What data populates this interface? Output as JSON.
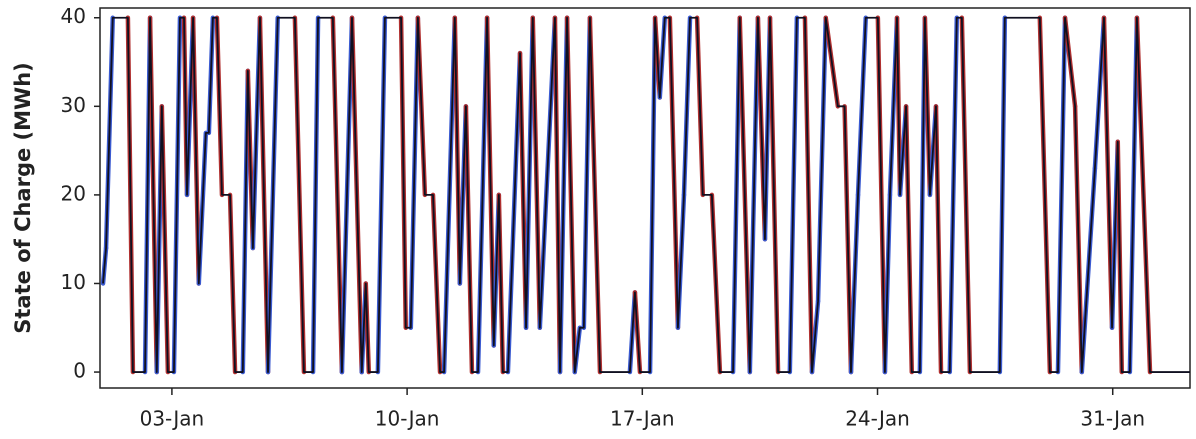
{
  "chart_data": {
    "type": "line",
    "ylabel": "State of Charge (MWh)",
    "x": [
      0.95,
      1.04,
      1.24,
      1.69,
      1.84,
      2.2,
      2.35,
      2.55,
      2.7,
      2.88,
      3.06,
      3.24,
      3.36,
      3.45,
      3.63,
      3.8,
      4.01,
      4.1,
      4.22,
      4.34,
      4.49,
      4.73,
      4.88,
      5.11,
      5.26,
      5.41,
      5.62,
      5.86,
      6.15,
      6.66,
      6.93,
      7.2,
      7.35,
      7.79,
      8.06,
      8.36,
      8.65,
      8.77,
      8.86,
      9.13,
      9.34,
      9.82,
      9.96,
      10.11,
      10.32,
      10.53,
      10.77,
      10.98,
      11.1,
      11.42,
      11.57,
      11.75,
      11.93,
      12.11,
      12.38,
      12.58,
      12.73,
      12.85,
      13.0,
      13.36,
      13.54,
      13.74,
      13.95,
      14.4,
      14.55,
      14.76,
      14.99,
      15.14,
      15.26,
      15.44,
      15.74,
      15.98,
      16.63,
      16.78,
      16.93,
      17.23,
      17.38,
      17.52,
      17.67,
      17.82,
      18.06,
      18.24,
      18.42,
      18.63,
      18.8,
      19.07,
      19.31,
      19.7,
      19.9,
      20.2,
      20.44,
      20.65,
      20.8,
      21.04,
      21.39,
      21.6,
      21.84,
      22.05,
      22.23,
      22.46,
      22.82,
      23.02,
      23.21,
      23.42,
      23.65,
      24.01,
      24.22,
      24.37,
      24.58,
      24.67,
      24.85,
      25.02,
      25.26,
      25.41,
      25.56,
      25.74,
      25.89,
      26.15,
      26.36,
      26.51,
      26.75,
      27.64,
      27.79,
      28.83,
      29.13,
      29.37,
      29.58,
      29.88,
      30.08,
      30.47,
      30.74,
      30.98,
      31.15,
      31.27,
      31.51,
      31.72,
      32.11,
      33.3
    ],
    "series": [
      {
        "color": "#101020",
        "rise_color": "#3a5ad0",
        "fall_color": "#b03030",
        "values": [
          10,
          14,
          40,
          40,
          0,
          0,
          40,
          0,
          30,
          0,
          0,
          40,
          40,
          20,
          40,
          10,
          27,
          27,
          40,
          40,
          20,
          20,
          0,
          0,
          34,
          14,
          40,
          0,
          40,
          40,
          0,
          0,
          40,
          40,
          0,
          40,
          0,
          10,
          0,
          0,
          40,
          40,
          5,
          5,
          40,
          20,
          20,
          0,
          0,
          40,
          10,
          30,
          0,
          0,
          40,
          3,
          20,
          0,
          0,
          36,
          5,
          40,
          5,
          40,
          0,
          40,
          0,
          5,
          5,
          40,
          0,
          0,
          0,
          9,
          0,
          0,
          40,
          31,
          40,
          40,
          5,
          20,
          40,
          40,
          20,
          20,
          0,
          0,
          40,
          0,
          40,
          15,
          40,
          0,
          0,
          40,
          40,
          0,
          8,
          40,
          30,
          30,
          0,
          20,
          40,
          40,
          0,
          20,
          40,
          20,
          30,
          0,
          0,
          40,
          20,
          30,
          0,
          0,
          40,
          40,
          0,
          0,
          40,
          40,
          0,
          0,
          40,
          30,
          0,
          23,
          40,
          5,
          26,
          0,
          0,
          40,
          0,
          0
        ]
      }
    ],
    "xlim": [
      0.86,
      33.3
    ],
    "ylim": [
      -1.8,
      41.1
    ],
    "xticks": [
      {
        "value": 3,
        "label": "03-Jan"
      },
      {
        "value": 10,
        "label": "10-Jan"
      },
      {
        "value": 17,
        "label": "17-Jan"
      },
      {
        "value": 24,
        "label": "24-Jan"
      },
      {
        "value": 31,
        "label": "31-Jan"
      }
    ],
    "yticks": [
      0,
      10,
      20,
      30,
      40
    ]
  }
}
